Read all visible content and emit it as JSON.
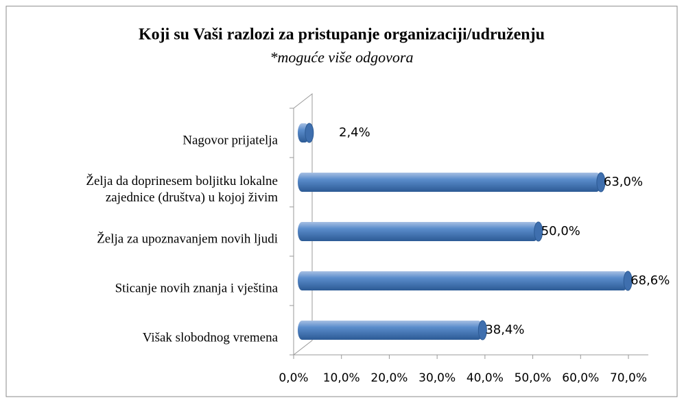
{
  "chart_data": {
    "type": "bar",
    "orientation": "horizontal",
    "title": "Koji su Vaši razlozi za pristupanje organizaciji/udruženju",
    "subtitle": "*moguće više odgovora",
    "categories": [
      "Nagovor prijatelja",
      "Želja da doprinesem boljitku lokalne\nzajednice (društva) u kojoj živim",
      "Želja za upoznavanjem novih ljudi",
      "Sticanje novih znanja i vještina",
      "Višak slobodnog vremena"
    ],
    "values": [
      2.4,
      63.0,
      50.0,
      68.6,
      38.4
    ],
    "value_labels": [
      "2,4%",
      "63,0%",
      "50,0%",
      "68,6%",
      "38,4%"
    ],
    "color": "#4f81bd",
    "xlim": [
      0,
      70
    ],
    "xticks": [
      {
        "value": 0,
        "label": "0,0%"
      },
      {
        "value": 10,
        "label": "10,0%"
      },
      {
        "value": 20,
        "label": "20,0%"
      },
      {
        "value": 30,
        "label": "30,0%"
      },
      {
        "value": 40,
        "label": "40,0%"
      },
      {
        "value": 50,
        "label": "50,0%"
      },
      {
        "value": 60,
        "label": "60,0%"
      },
      {
        "value": 70,
        "label": "70,0%"
      }
    ]
  }
}
